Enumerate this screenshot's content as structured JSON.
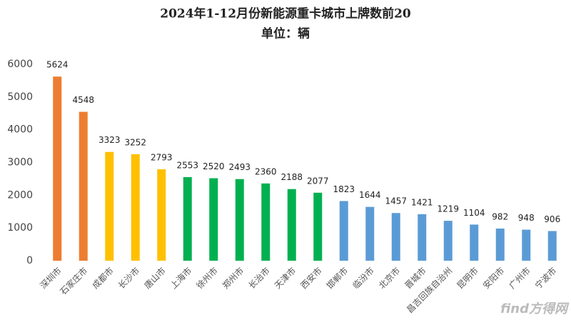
{
  "chart_data": {
    "type": "bar",
    "title": "2024年1-12月份新能源重卡城市上牌数前20",
    "subtitle": "单位：辆",
    "categories": [
      "深圳市",
      "石家庄市",
      "成都市",
      "长沙市",
      "唐山市",
      "上海市",
      "徐州市",
      "郑州市",
      "长治市",
      "天津市",
      "西安市",
      "邯郸市",
      "临汾市",
      "北京市",
      "晋城市",
      "昌吉回族自治州",
      "昆明市",
      "安阳市",
      "广州市",
      "宁波市"
    ],
    "values": [
      5624,
      4548,
      3323,
      3252,
      2793,
      2553,
      2520,
      2493,
      2360,
      2188,
      2077,
      1823,
      1644,
      1457,
      1421,
      1219,
      1104,
      982,
      948,
      906
    ],
    "colors": [
      "#ed7d31",
      "#ed7d31",
      "#ffc000",
      "#ffc000",
      "#ffc000",
      "#00b050",
      "#00b050",
      "#00b050",
      "#00b050",
      "#00b050",
      "#00b050",
      "#5b9bd5",
      "#5b9bd5",
      "#5b9bd5",
      "#5b9bd5",
      "#5b9bd5",
      "#5b9bd5",
      "#5b9bd5",
      "#5b9bd5",
      "#5b9bd5"
    ],
    "ylim": [
      0,
      6000
    ],
    "yticks": [
      0,
      1000,
      2000,
      3000,
      4000,
      5000,
      6000
    ],
    "grid": false,
    "watermark": "find方得网"
  }
}
